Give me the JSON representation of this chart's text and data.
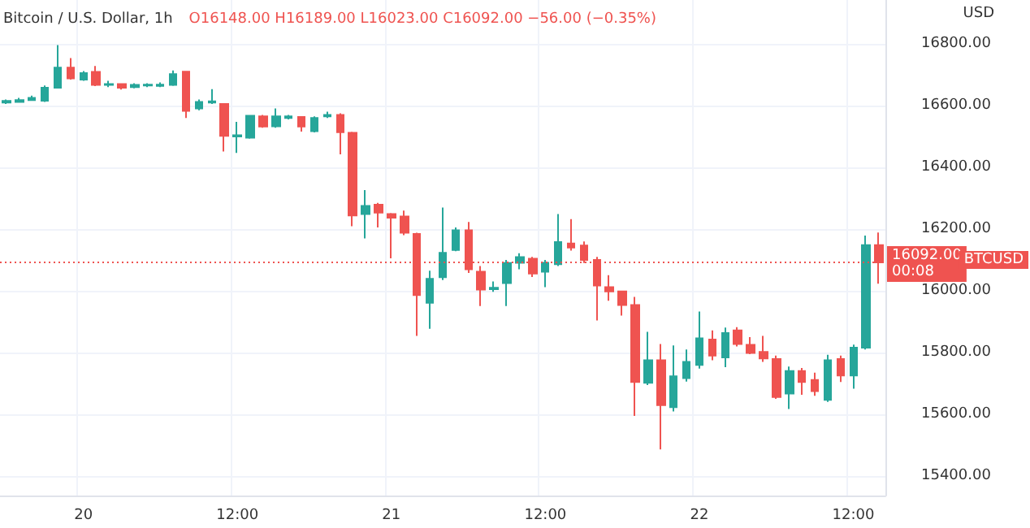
{
  "chart_data": {
    "type": "candlestick",
    "title": "Bitcoin / U.S. Dollar, 1h",
    "subtitle": "O16148.00 H16189.00 L16023.00 C16092.00 −56.00 (−0.35%)",
    "ylabel": "USD",
    "annotations": [
      "BTCUSD"
    ],
    "categories": [
      null,
      null,
      null,
      null,
      null,
      null,
      "20",
      null,
      null,
      null,
      null,
      null,
      null,
      null,
      null,
      null,
      null,
      null,
      "12:00",
      null,
      null,
      null,
      null,
      null,
      null,
      null,
      null,
      null,
      null,
      null,
      "21",
      null,
      null,
      null,
      null,
      null,
      null,
      null,
      null,
      null,
      null,
      null,
      "12:00",
      null,
      null,
      null,
      null,
      null,
      null,
      null,
      null,
      null,
      null,
      null,
      "22",
      null,
      null,
      null,
      null,
      null,
      null,
      null,
      null,
      null,
      null,
      null,
      "12:00",
      null,
      null
    ],
    "ohlc": [
      [
        16610,
        16620,
        16605,
        16615
      ],
      [
        16612,
        16625,
        16610,
        16618
      ],
      [
        16618,
        16632,
        16615,
        16625
      ],
      [
        16616,
        16665,
        16612,
        16658
      ],
      [
        16658,
        16796,
        16655,
        16723
      ],
      [
        16723,
        16754,
        16684,
        16688
      ],
      [
        16684,
        16712,
        16680,
        16705
      ],
      [
        16709,
        16728,
        16663,
        16667
      ],
      [
        16667,
        16680,
        16660,
        16670
      ],
      [
        16670,
        16672,
        16652,
        16658
      ],
      [
        16660,
        16672,
        16656,
        16667
      ],
      [
        16665,
        16672,
        16660,
        16668
      ],
      [
        16664,
        16675,
        16660,
        16668
      ],
      [
        16667,
        16714,
        16664,
        16702
      ],
      [
        16710,
        16712,
        16560,
        16583
      ],
      [
        16591,
        16620,
        16585,
        16612
      ],
      [
        16610,
        16653,
        16605,
        16614
      ],
      [
        16605,
        16608,
        16451,
        16502
      ],
      [
        16500,
        16547,
        16447,
        16504
      ],
      [
        16496,
        16570,
        16493,
        16567
      ],
      [
        16565,
        16570,
        16528,
        16532
      ],
      [
        16533,
        16591,
        16528,
        16565
      ],
      [
        16560,
        16570,
        16555,
        16565
      ],
      [
        16563,
        16566,
        16516,
        16532
      ],
      [
        16517,
        16565,
        16513,
        16560
      ],
      [
        16565,
        16580,
        16560,
        16570
      ],
      [
        16570,
        16575,
        16442,
        16514
      ],
      [
        16512,
        16515,
        16209,
        16244
      ],
      [
        16249,
        16326,
        16170,
        16275
      ],
      [
        16279,
        16285,
        16205,
        16253
      ],
      [
        16249,
        16252,
        16105,
        16237
      ],
      [
        16241,
        16260,
        16180,
        16188
      ],
      [
        16184,
        16188,
        15854,
        15986
      ],
      [
        15961,
        16065,
        15877,
        16039
      ],
      [
        16044,
        16270,
        16035,
        16123
      ],
      [
        16132,
        16205,
        16128,
        16196
      ],
      [
        16196,
        16223,
        16058,
        16070
      ],
      [
        16062,
        16080,
        15951,
        16004
      ],
      [
        16005,
        16030,
        15997,
        16010
      ],
      [
        16025,
        16100,
        15951,
        16090
      ],
      [
        16091,
        16122,
        16070,
        16109
      ],
      [
        16104,
        16110,
        16045,
        16056
      ],
      [
        16062,
        16100,
        16012,
        16091
      ],
      [
        16086,
        16249,
        16080,
        16158
      ],
      [
        16153,
        16232,
        16130,
        16140
      ],
      [
        16147,
        16160,
        16090,
        16100
      ],
      [
        16100,
        16110,
        15904,
        16017
      ],
      [
        16012,
        16051,
        15968,
        15998
      ],
      [
        15998,
        16000,
        15920,
        15954
      ],
      [
        15954,
        15980,
        15595,
        15705
      ],
      [
        15702,
        15867,
        15695,
        15775
      ],
      [
        15775,
        15828,
        15486,
        15630
      ],
      [
        15623,
        15823,
        15609,
        15723
      ],
      [
        15717,
        15810,
        15706,
        15770
      ],
      [
        15760,
        15933,
        15748,
        15846
      ],
      [
        15842,
        15872,
        15775,
        15790
      ],
      [
        15784,
        15881,
        15753,
        15863
      ],
      [
        15872,
        15882,
        15820,
        15828
      ],
      [
        15825,
        15850,
        15795,
        15799
      ],
      [
        15802,
        15854,
        15770,
        15781
      ],
      [
        15779,
        15790,
        15650,
        15656
      ],
      [
        15667,
        15755,
        15617,
        15740
      ],
      [
        15740,
        15750,
        15663,
        15705
      ],
      [
        15711,
        15735,
        15660,
        15675
      ],
      [
        15647,
        15793,
        15640,
        15775
      ],
      [
        15779,
        15790,
        15705,
        15726
      ],
      [
        15726,
        15826,
        15683,
        15816
      ],
      [
        15816,
        16179,
        15810,
        16148
      ],
      [
        16148,
        16189,
        16023,
        16092
      ]
    ],
    "colors": [
      "#26a69a",
      "#26a69a",
      "#26a69a",
      "#26a69a",
      "#26a69a",
      "#ef5350",
      "#26a69a",
      "#ef5350",
      "#26a69a",
      "#ef5350",
      "#26a69a",
      "#26a69a",
      "#26a69a",
      "#26a69a",
      "#ef5350",
      "#26a69a",
      "#26a69a",
      "#ef5350",
      "#26a69a",
      "#26a69a",
      "#ef5350",
      "#26a69a",
      "#26a69a",
      "#ef5350",
      "#26a69a",
      "#26a69a",
      "#ef5350",
      "#ef5350",
      "#26a69a",
      "#ef5350",
      "#ef5350",
      "#ef5350",
      "#ef5350",
      "#26a69a",
      "#26a69a",
      "#26a69a",
      "#ef5350",
      "#ef5350",
      "#26a69a",
      "#26a69a",
      "#26a69a",
      "#ef5350",
      "#26a69a",
      "#26a69a",
      "#ef5350",
      "#ef5350",
      "#ef5350",
      "#ef5350",
      "#ef5350",
      "#ef5350",
      "#26a69a",
      "#ef5350",
      "#26a69a",
      "#26a69a",
      "#26a69a",
      "#ef5350",
      "#26a69a",
      "#ef5350",
      "#ef5350",
      "#ef5350",
      "#ef5350",
      "#26a69a",
      "#ef5350",
      "#ef5350",
      "#26a69a",
      "#ef5350",
      "#26a69a",
      "#26a69a",
      "#ef5350"
    ],
    "ylim": [
      15337,
      16942
    ],
    "yticks": [
      {
        "value": 15400,
        "label": "15400.00"
      },
      {
        "value": 15600,
        "label": "15600.00"
      },
      {
        "value": 15800,
        "label": "15800.00"
      },
      {
        "value": 16000,
        "label": "16000.00"
      },
      {
        "value": 16200,
        "label": "16200.00"
      },
      {
        "value": 16400,
        "label": "16400.00"
      },
      {
        "value": 16600,
        "label": "16600.00"
      },
      {
        "value": 16800,
        "label": "16800.00"
      }
    ],
    "ref_lines": [
      {
        "axis": "y",
        "value": 16092,
        "label": "16092.00\n00:08",
        "color": "#ef5350",
        "line_style": "dotted"
      }
    ],
    "grid": true
  }
}
